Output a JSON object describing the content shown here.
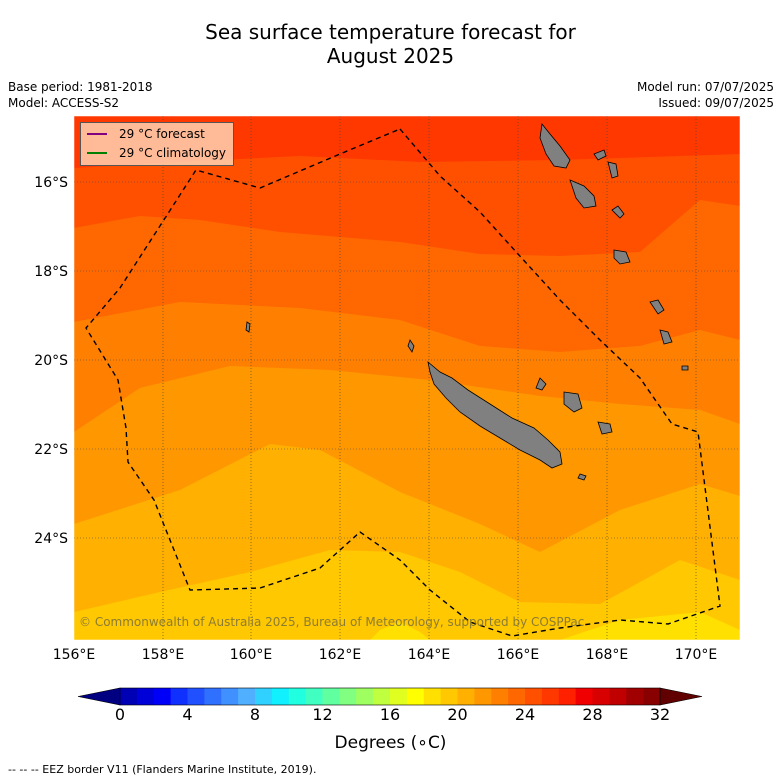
{
  "title_line1": "Sea surface temperature forecast for",
  "title_line2": "August 2025",
  "base_period": "Base period: 1981-2018",
  "model": "Model: ACCESS-S2",
  "model_run": "Model run: 07/07/2025",
  "issued": "Issued: 09/07/2025",
  "legend": [
    {
      "label": "29 °C  forecast",
      "color": "#800080"
    },
    {
      "label": "29 °C  climatology",
      "color": "#008000"
    }
  ],
  "lat_labels": [
    "16°S",
    "18°S",
    "20°S",
    "22°S",
    "24°S"
  ],
  "lon_labels": [
    "156°E",
    "158°E",
    "160°E",
    "162°E",
    "164°E",
    "166°E",
    "168°E",
    "170°E"
  ],
  "colorbar": {
    "ticks": [
      "0",
      "4",
      "8",
      "12",
      "16",
      "20",
      "24",
      "28",
      "32"
    ],
    "label": "Degrees (∘C)",
    "colors": [
      "#0000b4",
      "#0000d8",
      "#0000f8",
      "#1030ff",
      "#2050ff",
      "#3070ff",
      "#4090ff",
      "#50b0ff",
      "#30d0ff",
      "#10f0ff",
      "#20ffe0",
      "#40ffc0",
      "#60ffa0",
      "#80ff80",
      "#a0ff60",
      "#c0ff40",
      "#e0ff20",
      "#ffff00",
      "#ffe000",
      "#ffc800",
      "#ffb000",
      "#ff9800",
      "#ff8000",
      "#ff6800",
      "#ff5000",
      "#ff3800",
      "#ff2000",
      "#f00000",
      "#d80000",
      "#c00000",
      "#a00000",
      "#880000"
    ],
    "under_color": "#000080",
    "over_color": "#600000"
  },
  "copyright": "© Commonwealth of Australia 2025, Bureau of Meteorology, supported by COSPPac",
  "footer": "--  --  -- EEZ border V11 (Flanders Marine Institute, 2019)."
}
